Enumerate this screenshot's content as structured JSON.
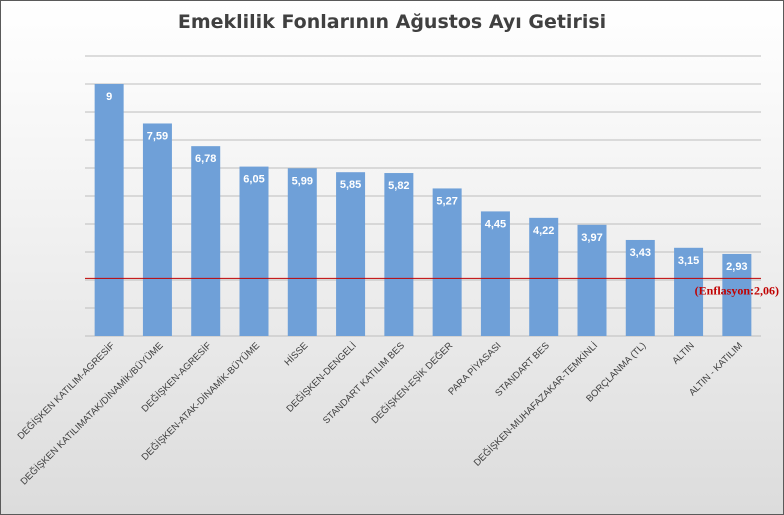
{
  "chart_data": {
    "type": "bar",
    "title": "Emeklilik Fonlarının Ağustos Ayı Getirisi",
    "categories": [
      "DEĞİŞKEN KATILIM-AGRESİF",
      "DEĞİŞKEN KATILIMATAK/DİNAMİK/BÜYÜME",
      "DEĞİŞKEN-AGRESİF",
      "DEĞİŞKEN-ATAK-DİNAMİK-BÜYÜME",
      "HİSSE",
      "DEĞİŞKEN-DENGELİ",
      "STANDART KATILIM BES",
      "DEĞİŞKEN-EŞİK DEĞER",
      "PARA PİYASASI",
      "STANDART BES",
      "DEĞİŞKEN-MUHAFAZAKAR-TEMKİNLİ",
      "BORÇLANMA (TL)",
      "ALTIN",
      "ALTIN - KATILIM"
    ],
    "values": [
      9,
      7.59,
      6.78,
      6.05,
      5.99,
      5.85,
      5.82,
      5.27,
      4.45,
      4.22,
      3.97,
      3.43,
      3.15,
      2.93
    ],
    "value_labels": [
      "9",
      "7,59",
      "6,78",
      "6,05",
      "5,99",
      "5,85",
      "5,82",
      "5,27",
      "4,45",
      "4,22",
      "3,97",
      "3,43",
      "3,15",
      "2,93"
    ],
    "ylim": [
      0,
      10
    ],
    "grid": true,
    "bar_color": "#6fa0d8",
    "reference_line": {
      "value": 2.06,
      "label": "(Enflasyon:2,06)",
      "color": "#c00000"
    }
  }
}
